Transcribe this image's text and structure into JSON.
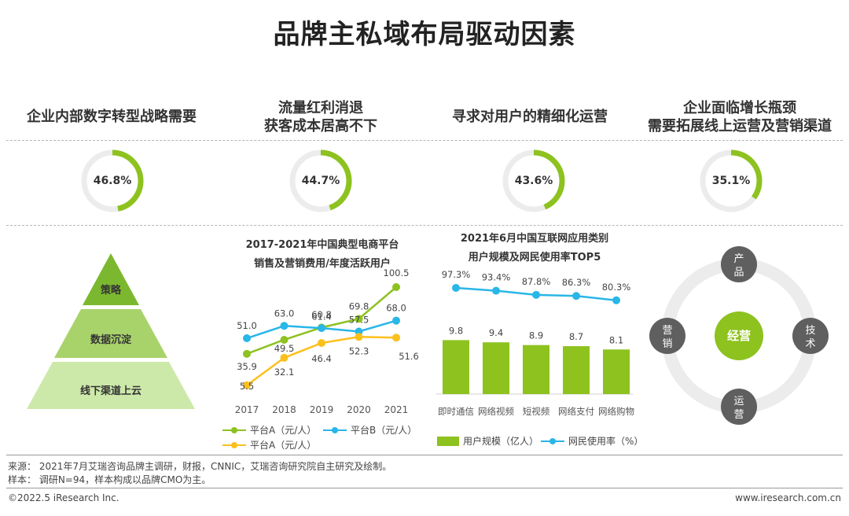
{
  "page": {
    "title": "品牌主私域布局驱动因素"
  },
  "drivers": [
    {
      "label_lines": [
        "企业内部数字转型战略需要"
      ],
      "percent": 46.8,
      "value_text": "46.8%"
    },
    {
      "label_lines": [
        "流量红利消退",
        "获客成本居高不下"
      ],
      "percent": 44.7,
      "value_text": "44.7%"
    },
    {
      "label_lines": [
        "寻求对用户的精细化运营"
      ],
      "percent": 43.6,
      "value_text": "43.6%"
    },
    {
      "label_lines": [
        "企业面临增长瓶颈",
        "需要拓展线上运营及营销渠道"
      ],
      "percent": 35.1,
      "value_text": "35.1%"
    }
  ],
  "pyramid": {
    "levels": [
      "策略",
      "数据沉淀",
      "线下渠道上云"
    ]
  },
  "colors": {
    "green": "#8dc21f",
    "blue": "#29b6e8",
    "yellow": "#fcc01d",
    "grey_ring": "#ececec",
    "pyr_top": "#7cb82f",
    "pyr_mid": "#a8d36b",
    "pyr_bot": "#cde9a9",
    "circle_grey": "#5f5f5f"
  },
  "chart_data": [
    {
      "type": "line",
      "title_lines": [
        "2017-2021年中国典型电商平台",
        "销售及营销费用/年度活跃用户"
      ],
      "x": [
        "2017",
        "2018",
        "2019",
        "2020",
        "2021"
      ],
      "series": [
        {
          "name": "平台A（元/人）",
          "color": "green",
          "values": [
            35.9,
            49.5,
            61.4,
            69.8,
            100.5
          ],
          "labels": [
            "35.9",
            "49.5",
            "61.4",
            "69.8",
            "100.5"
          ]
        },
        {
          "name": "平台B（元/人）",
          "color": "blue",
          "values": [
            51.0,
            63.0,
            60.8,
            57.5,
            68.0
          ],
          "labels": [
            "51.0",
            "63.0",
            "60.8",
            "57.5",
            "68.0"
          ]
        },
        {
          "name": "平台A（元/人）",
          "color": "yellow",
          "values": [
            5.5,
            32.1,
            46.4,
            52.3,
            51.6
          ],
          "labels": [
            "5.5",
            "32.1",
            "46.4",
            "52.3",
            "51.6"
          ]
        }
      ],
      "ylim": [
        0,
        110
      ]
    },
    {
      "type": "bar",
      "title_lines": [
        "2021年6月中国互联网应用类别",
        "用户规模及网民使用率TOP5"
      ],
      "categories": [
        "即时通信",
        "网络视频",
        "短视频",
        "网络支付",
        "网络购物"
      ],
      "series": [
        {
          "name": "用户规模（亿人）",
          "kind": "bar",
          "values": [
            9.8,
            9.4,
            8.9,
            8.7,
            8.1
          ],
          "labels": [
            "9.8",
            "9.4",
            "8.9",
            "8.7",
            "8.1"
          ]
        },
        {
          "name": "网民使用率（%）",
          "kind": "line",
          "values": [
            97.3,
            93.4,
            87.8,
            86.3,
            80.3
          ],
          "labels": [
            "97.3%",
            "93.4%",
            "87.8%",
            "86.3%",
            "80.3%"
          ]
        }
      ]
    }
  ],
  "ops_diagram": {
    "center": "经营",
    "nodes": {
      "top": "产品",
      "right": "技术",
      "bottom": "运营",
      "left": "营销"
    }
  },
  "footer": {
    "source": "来源： 2021年7月艾瑞咨询品牌主调研，财报，CNNIC，艾瑞咨询研究院自主研究及绘制。",
    "sample": "样本： 调研N=94，样本构成以品牌CMO为主。",
    "copyright": "©2022.5 iResearch Inc.",
    "website": "www.iresearch.com.cn"
  }
}
